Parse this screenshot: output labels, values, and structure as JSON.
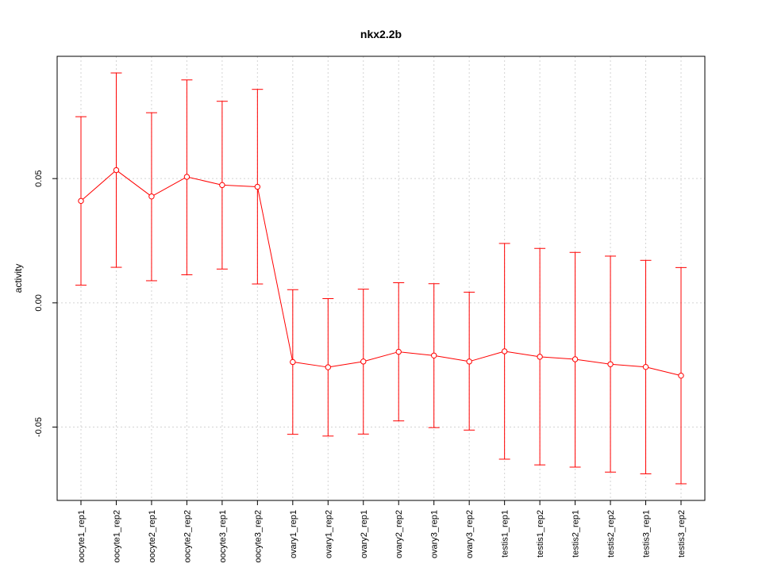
{
  "chart_data": {
    "type": "line",
    "title": "nkx2.2b",
    "xlabel": "",
    "ylabel": "activity",
    "categories": [
      "oocyte1_rep1",
      "oocyte1_rep2",
      "oocyte2_rep1",
      "oocyte2_rep2",
      "oocyte3_rep1",
      "oocyte3_rep2",
      "ovary1_rep1",
      "ovary1_rep2",
      "ovary2_rep1",
      "ovary2_rep2",
      "ovary3_rep1",
      "ovary3_rep2",
      "testis1_rep1",
      "testis1_rep2",
      "testis2_rep1",
      "testis2_rep2",
      "testis3_rep1",
      "testis3_rep2"
    ],
    "series": [
      {
        "values": [
          0.041,
          0.0534,
          0.0428,
          0.0507,
          0.0474,
          0.0467,
          -0.0238,
          -0.0259,
          -0.0236,
          -0.0197,
          -0.0212,
          -0.0236,
          -0.0195,
          -0.0217,
          -0.0227,
          -0.0247,
          -0.0258,
          -0.0293
        ],
        "upper": [
          0.0749,
          0.0925,
          0.0765,
          0.0897,
          0.0811,
          0.0859,
          0.0053,
          0.0017,
          0.0055,
          0.0081,
          0.0077,
          0.0043,
          0.0239,
          0.0219,
          0.0203,
          0.0188,
          0.0171,
          0.0142
        ],
        "lower": [
          0.0071,
          0.0143,
          0.0089,
          0.0113,
          0.0136,
          0.0076,
          -0.0529,
          -0.0536,
          -0.0528,
          -0.0475,
          -0.0502,
          -0.0512,
          -0.0629,
          -0.0652,
          -0.0661,
          -0.0681,
          -0.0688,
          -0.0728
        ],
        "color": "#ff0000"
      }
    ],
    "yticks": [
      -0.05,
      0.0,
      0.05
    ],
    "ytick_labels": [
      "-0.05",
      "0.00",
      "0.05"
    ],
    "ylim": [
      -0.0795,
      0.0992
    ],
    "grid": true,
    "colors": {
      "line": "#ff0000",
      "grid": "#d3d3d3",
      "axis": "#000000"
    }
  }
}
